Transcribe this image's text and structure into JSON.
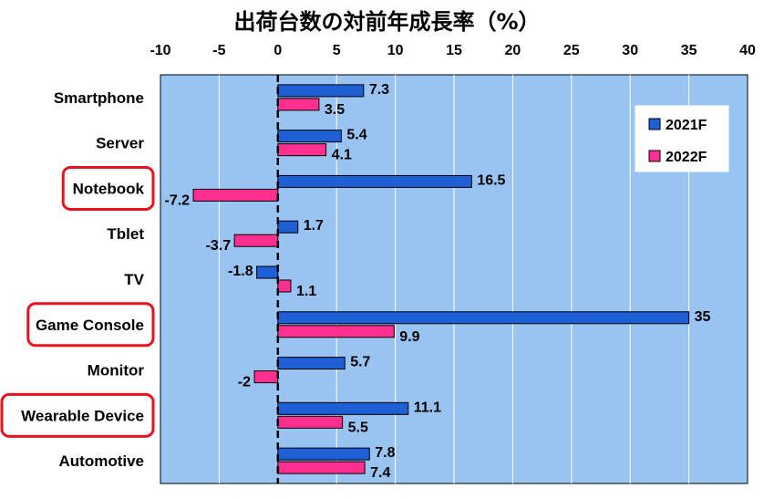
{
  "chart_data": {
    "type": "bar",
    "orientation": "horizontal",
    "title": "出荷台数の対前年成長率（%）",
    "xlim": [
      -10,
      40
    ],
    "xticks": [
      -10,
      -5,
      0,
      5,
      10,
      15,
      20,
      25,
      30,
      35,
      40
    ],
    "grid": true,
    "legend_position": "top-right",
    "categories": [
      "Smartphone",
      "Server",
      "Notebook",
      "Tblet",
      "TV",
      "Game Console",
      "Monitor",
      "Wearable Device",
      "Automotive"
    ],
    "highlighted_categories": [
      "Notebook",
      "Game Console",
      "Wearable Device"
    ],
    "series": [
      {
        "name": "2021F",
        "color": "#1f5fd6",
        "values": [
          7.3,
          5.4,
          16.5,
          1.7,
          -1.8,
          35,
          5.7,
          11.1,
          7.8
        ]
      },
      {
        "name": "2022F",
        "color": "#ff2f8f",
        "values": [
          3.5,
          4.1,
          -7.2,
          -3.7,
          1.1,
          9.9,
          -2,
          5.5,
          7.4
        ]
      }
    ],
    "colors": {
      "plot_background": "#99c4f2",
      "grid": "#ffffff",
      "highlight_border": "#e8121e"
    }
  }
}
